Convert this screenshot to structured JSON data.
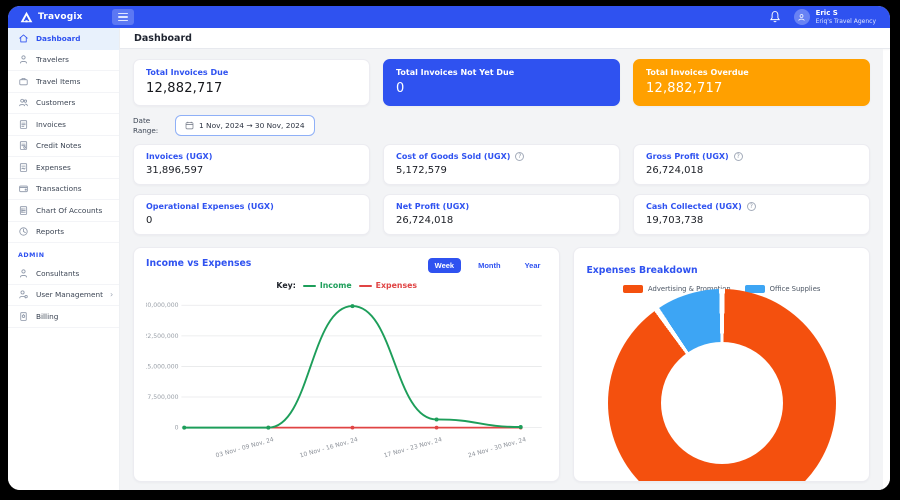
{
  "topbar": {
    "brand": "Travogix",
    "user_name": "Eric S",
    "user_org": "Eriq's Travel Agency"
  },
  "sidebar": {
    "items": [
      {
        "label": "Dashboard",
        "icon": "home-icon",
        "active": true
      },
      {
        "label": "Travelers",
        "icon": "person-icon"
      },
      {
        "label": "Travel Items",
        "icon": "briefcase-icon"
      },
      {
        "label": "Customers",
        "icon": "users-icon"
      },
      {
        "label": "Invoices",
        "icon": "invoice-icon"
      },
      {
        "label": "Credit Notes",
        "icon": "credit-note-icon"
      },
      {
        "label": "Expenses",
        "icon": "expense-icon"
      },
      {
        "label": "Transactions",
        "icon": "wallet-icon"
      },
      {
        "label": "Chart Of Accounts",
        "icon": "list-icon"
      },
      {
        "label": "Reports",
        "icon": "report-icon"
      }
    ],
    "admin_section_label": "ADMIN",
    "admin_items": [
      {
        "label": "Consultants",
        "icon": "consultant-icon"
      },
      {
        "label": "User Management",
        "icon": "user-gear-icon",
        "chevron": "›"
      },
      {
        "label": "Billing",
        "icon": "billing-icon"
      }
    ]
  },
  "header": {
    "title": "Dashboard"
  },
  "stats": {
    "cards": [
      {
        "label": "Total Invoices Due",
        "value": "12,882,717",
        "variant": "white"
      },
      {
        "label": "Total Invoices Not Yet Due",
        "value": "0",
        "variant": "blue"
      },
      {
        "label": "Total Invoices Overdue",
        "value": "12,882,717",
        "variant": "orange"
      }
    ]
  },
  "date_range": {
    "label": "Date Range:",
    "value": "1 Nov, 2024 → 30 Nov, 2024"
  },
  "metrics": {
    "cards": [
      {
        "label": "Invoices (UGX)",
        "value": "31,896,597",
        "info": false
      },
      {
        "label": "Cost of Goods Sold (UGX)",
        "value": "5,172,579",
        "info": true
      },
      {
        "label": "Gross Profit (UGX)",
        "value": "26,724,018",
        "info": true
      },
      {
        "label": "Operational Expenses (UGX)",
        "value": "0",
        "info": false
      },
      {
        "label": "Net Profit (UGX)",
        "value": "26,724,018",
        "info": false
      },
      {
        "label": "Cash Collected (UGX)",
        "value": "19,703,738",
        "info": true
      }
    ]
  },
  "income_vs_expenses": {
    "title": "Income vs Expenses",
    "tabs": [
      {
        "label": "Week",
        "active": true
      },
      {
        "label": "Month",
        "active": false
      },
      {
        "label": "Year",
        "active": false
      }
    ],
    "key_label": "Key:",
    "income_label": "Income",
    "expenses_label": "Expenses"
  },
  "expenses_breakdown": {
    "title": "Expenses Breakdown",
    "legend": [
      "Advertising & Promotion",
      "Office Supplies"
    ]
  },
  "chart_data": [
    {
      "type": "line",
      "title": "Income vs Expenses",
      "x": [
        "",
        "03 Nov - 09 Nov, 24",
        "10 Nov - 16 Nov, 24",
        "17 Nov - 23 Nov, 24",
        "24 Nov - 30 Nov, 24"
      ],
      "series": [
        {
          "name": "Income",
          "color": "#1d9e5a",
          "values": [
            0,
            0,
            29800000,
            2000000,
            150000
          ]
        },
        {
          "name": "Expenses",
          "color": "#e04444",
          "values": [
            null,
            0,
            0,
            0,
            0
          ]
        }
      ],
      "ylim": [
        0,
        30000000
      ],
      "yticks": [
        30000000,
        22500000,
        15000000,
        7500000,
        0
      ],
      "ytick_labels": [
        "30,000,000",
        "22,500,000",
        "15,000,000",
        "7,500,000",
        "0"
      ],
      "grid": true,
      "legend_position": "top"
    },
    {
      "type": "pie",
      "title": "Expenses Breakdown",
      "labels": [
        "Advertising & Promotion",
        "Office Supplies"
      ],
      "values_percent": [
        90.3,
        9.7
      ],
      "colors": [
        "#F4500E",
        "#3DA5F4"
      ],
      "donut": true,
      "legend_position": "top"
    }
  ],
  "colors": {
    "brand_blue": "#2F52F0",
    "orange_card": "#FFA000",
    "income_green": "#1d9e5a",
    "expenses_red": "#e04444",
    "donut_orange": "#F4500E",
    "donut_blue": "#3DA5F4",
    "content_bg": "#f3f4f6"
  }
}
